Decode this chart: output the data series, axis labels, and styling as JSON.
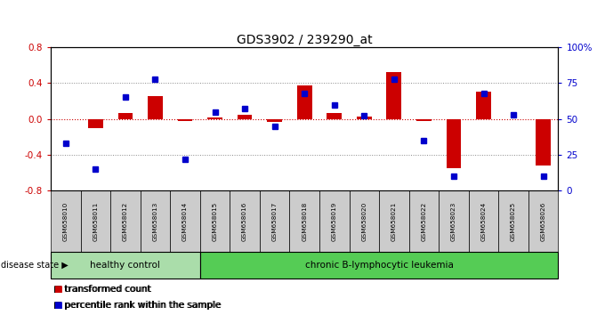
{
  "title": "GDS3902 / 239290_at",
  "samples": [
    "GSM658010",
    "GSM658011",
    "GSM658012",
    "GSM658013",
    "GSM658014",
    "GSM658015",
    "GSM658016",
    "GSM658017",
    "GSM658018",
    "GSM658019",
    "GSM658020",
    "GSM658021",
    "GSM658022",
    "GSM658023",
    "GSM658024",
    "GSM658025",
    "GSM658026"
  ],
  "red_values": [
    0.0,
    -0.1,
    0.07,
    0.25,
    -0.02,
    0.02,
    0.05,
    -0.03,
    0.37,
    0.07,
    0.03,
    0.52,
    -0.02,
    -0.55,
    0.3,
    0.0,
    -0.52
  ],
  "blue_values_pct": [
    33,
    15,
    65,
    78,
    22,
    55,
    57,
    45,
    68,
    60,
    52,
    78,
    35,
    10,
    68,
    53,
    10
  ],
  "group_labels": [
    "healthy control",
    "chronic B-lymphocytic leukemia"
  ],
  "group_counts": [
    5,
    12
  ],
  "disease_state_label": "disease state",
  "ylim": [
    -0.8,
    0.8
  ],
  "yticks_red": [
    -0.8,
    -0.4,
    0.0,
    0.4,
    0.8
  ],
  "yticks_blue": [
    0,
    25,
    50,
    75,
    100
  ],
  "red_color": "#cc0000",
  "blue_color": "#0000cc",
  "group_color_1": "#aaddaa",
  "group_color_2": "#55cc55",
  "tick_label_bg": "#cccccc",
  "legend_red": "transformed count",
  "legend_blue": "percentile rank within the sample",
  "dotted_line_color": "#888888",
  "zero_line_color": "#cc0000"
}
